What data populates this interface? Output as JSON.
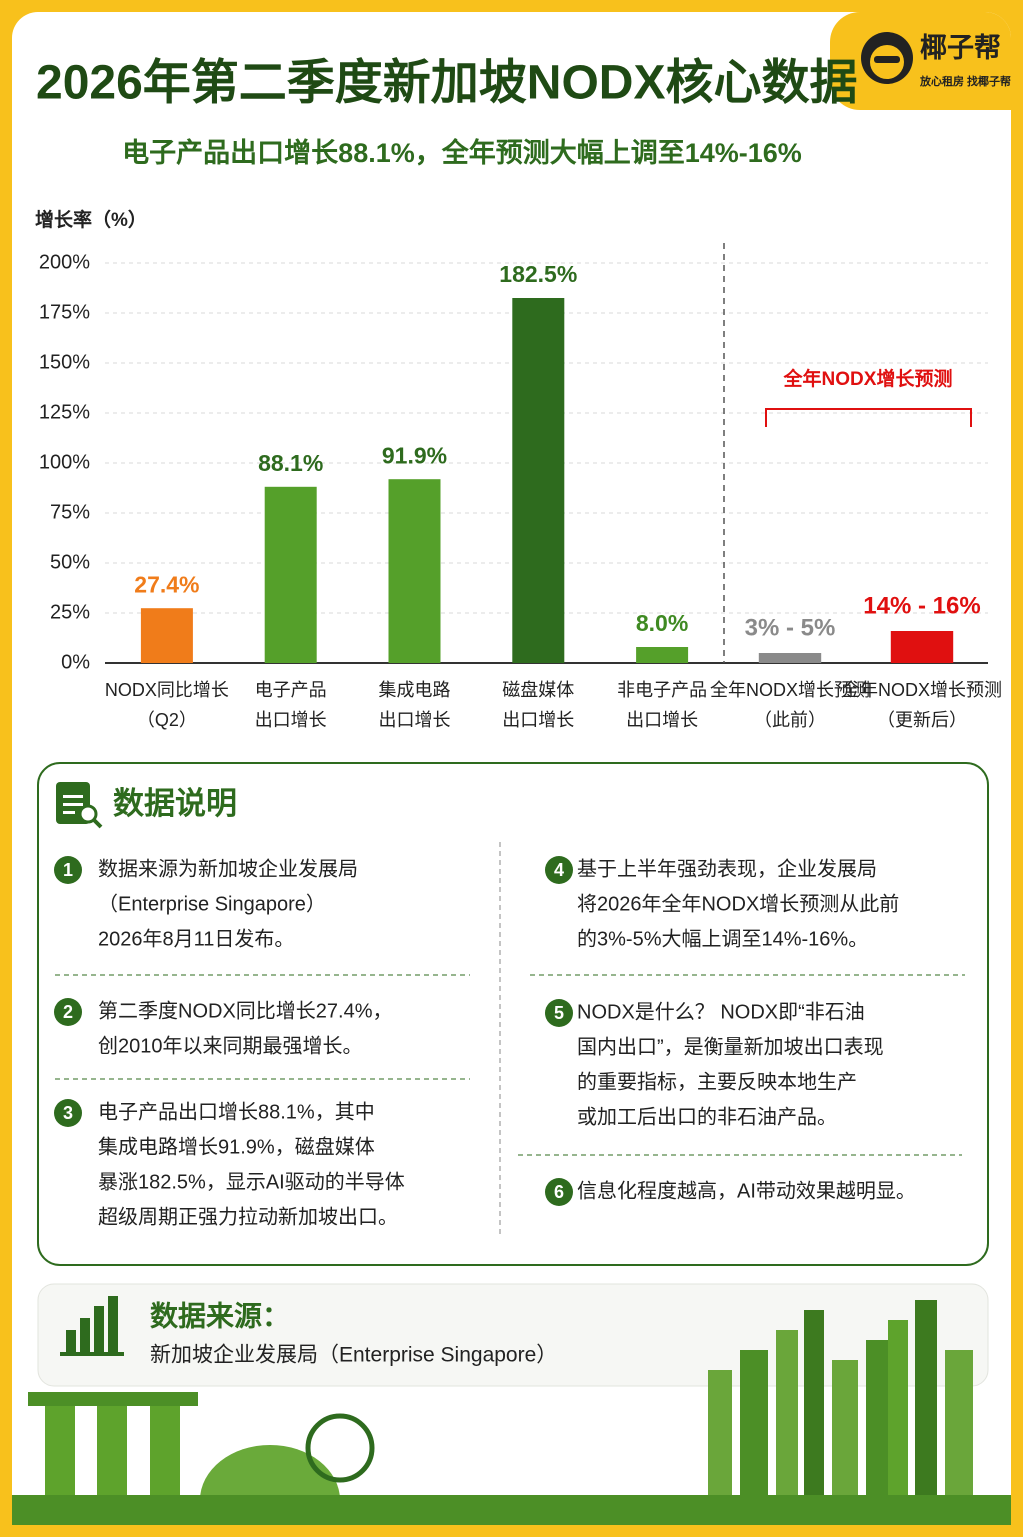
{
  "header": {
    "title": "2026年第二季度新加坡NODX核心数据",
    "subtitle": "电子产品出口增长88.1%，全年预测大幅上调至14%-16%",
    "logo": {
      "name": "椰子帮",
      "slogan": "放心租房 找椰子帮"
    }
  },
  "chart_data": {
    "type": "bar",
    "y_label": "增长率（%）",
    "ylim": [
      0,
      200
    ],
    "yticks": [
      {
        "value": 0,
        "label": "0%"
      },
      {
        "value": 25,
        "label": "25%"
      },
      {
        "value": 50,
        "label": "50%"
      },
      {
        "value": 75,
        "label": "75%"
      },
      {
        "value": 100,
        "label": "100%"
      },
      {
        "value": 125,
        "label": "125%"
      },
      {
        "value": 150,
        "label": "150%"
      },
      {
        "value": 175,
        "label": "175%"
      },
      {
        "value": 200,
        "label": "200%"
      }
    ],
    "grid": true,
    "categories": [
      [
        "NODX同比增长",
        "（Q2）"
      ],
      [
        "电子产品",
        "出口增长"
      ],
      [
        "集成电路",
        "出口增长"
      ],
      [
        "磁盘媒体",
        "出口增长"
      ],
      [
        "非电子产品",
        "出口增长"
      ]
    ],
    "values": [
      27.4,
      88.1,
      91.9,
      182.5,
      8.0
    ],
    "value_labels": [
      "27.4%",
      "88.1%",
      "91.9%",
      "182.5%",
      "8.0%"
    ],
    "colors": [
      "#f07c1a",
      "#55a02a",
      "#55a02a",
      "#2e6b1e",
      "#55a02a"
    ],
    "label_colors": [
      "#f07c1a",
      "#2e6b1e",
      "#2e6b1e",
      "#2e6b1e",
      "#3f8a22"
    ],
    "forecast": {
      "annotation": "全年NODX增长预测",
      "categories": [
        [
          "全年NODX增长预测",
          "（此前）"
        ],
        [
          "全年NODX增长预测",
          "（更新后）"
        ]
      ],
      "ranges": [
        [
          3,
          5
        ],
        [
          14,
          16
        ]
      ],
      "value_labels": [
        "3% - 5%",
        "14% - 16%"
      ],
      "colors": [
        "#8a8a8a",
        "#e01010"
      ]
    }
  },
  "notes": {
    "title": "数据说明",
    "items": [
      {
        "number": 1,
        "lines": [
          "数据来源为新加坡企业发展局",
          "（Enterprise Singapore）",
          "2026年8月11日发布。"
        ]
      },
      {
        "number": 2,
        "lines": [
          "第二季度NODX同比增长27.4%，",
          "创2010年以来同期最强增长。"
        ]
      },
      {
        "number": 3,
        "lines": [
          "电子产品出口增长88.1%，其中",
          "集成电路增长91.9%，磁盘媒体",
          "暴涨182.5%，显示AI驱动的半导体",
          "超级周期正强力拉动新加坡出口。"
        ]
      },
      {
        "number": 4,
        "lines": [
          "基于上半年强劲表现，企业发展局",
          "将2026年全年NODX增长预测从此前",
          "的3%-5%大幅上调至14%-16%。"
        ]
      },
      {
        "number": 5,
        "lines": [
          "NODX是什么？ NODX即“非石油",
          "国内出口”，是衡量新加坡出口表现",
          "的重要指标，主要反映本地生产",
          "或加工后出口的非石油产品。"
        ]
      },
      {
        "number": 6,
        "lines": [
          "信息化程度越高，AI带动效果越明显。"
        ]
      }
    ]
  },
  "source": {
    "title": "数据来源：",
    "text": "新加坡企业发展局（Enterprise Singapore）"
  }
}
